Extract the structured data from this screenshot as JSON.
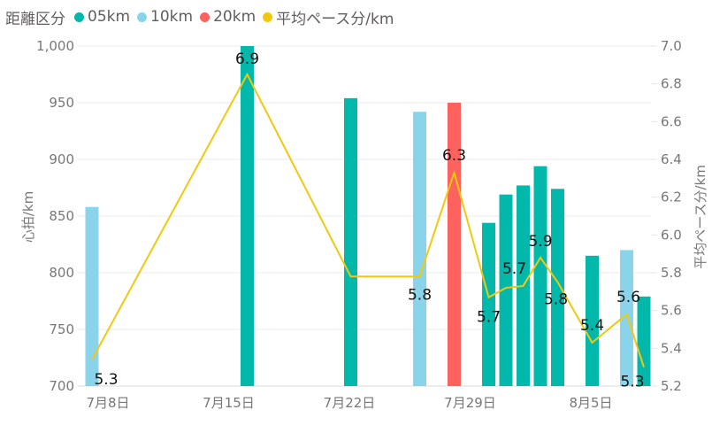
{
  "legend": {
    "title": "距離区分",
    "items": [
      {
        "label": "05km",
        "color": "#01B8AA"
      },
      {
        "label": "10km",
        "color": "#8AD4EB"
      },
      {
        "label": "20km",
        "color": "#FD625E"
      },
      {
        "label": "平均ペース分/km",
        "color": "#F2C80F"
      }
    ]
  },
  "chart_data": {
    "type": "bar+line",
    "title": "",
    "xlabel": "",
    "ylabel": "心拍/km",
    "y2label": "平均ペース分/km",
    "ylim": [
      700,
      1000
    ],
    "y2lim": [
      5.2,
      7.0
    ],
    "grid": true,
    "legend_position": "top-left",
    "y_ticks": [
      "1,000",
      "950",
      "900",
      "850",
      "800",
      "750",
      "700"
    ],
    "y2_ticks": [
      "7.0",
      "6.8",
      "6.6",
      "6.4",
      "6.2",
      "6.0",
      "5.8",
      "5.6",
      "5.4",
      "5.2"
    ],
    "x_ticks": [
      "7月8日",
      "7月15日",
      "7月22日",
      "7月29日",
      "8月5日"
    ],
    "points": [
      {
        "date": "7月8日",
        "category": "10km",
        "heartbeats_per_km": 858,
        "pace": 5.34,
        "pace_label": "5.3"
      },
      {
        "date": "7月17日",
        "category": "05km",
        "heartbeats_per_km": 1000,
        "pace": 6.85,
        "pace_label": "6.9"
      },
      {
        "date": "7月23日",
        "category": "05km",
        "heartbeats_per_km": 954,
        "pace": 5.78,
        "pace_label": ""
      },
      {
        "date": "7月27日",
        "category": "10km",
        "heartbeats_per_km": 942,
        "pace": 5.78,
        "pace_label": "5.8"
      },
      {
        "date": "7月29日",
        "category": "20km",
        "heartbeats_per_km": 950,
        "pace": 6.33,
        "pace_label": "6.3"
      },
      {
        "date": "7月31日",
        "category": "05km",
        "heartbeats_per_km": 844,
        "pace": 5.67,
        "pace_label": "5.7"
      },
      {
        "date": "8月1日",
        "category": "05km",
        "heartbeats_per_km": 869,
        "pace": 5.72,
        "pace_label": ""
      },
      {
        "date": "8月2日",
        "category": "05km",
        "heartbeats_per_km": 877,
        "pace": 5.73,
        "pace_label": "5.7"
      },
      {
        "date": "8月3日",
        "category": "05km",
        "heartbeats_per_km": 894,
        "pace": 5.88,
        "pace_label": "5.9"
      },
      {
        "date": "8月4日",
        "category": "05km",
        "heartbeats_per_km": 874,
        "pace": 5.75,
        "pace_label": "5.8"
      },
      {
        "date": "8月6日",
        "category": "05km",
        "heartbeats_per_km": 815,
        "pace": 5.43,
        "pace_label": "5.4"
      },
      {
        "date": "8月8日",
        "category": "10km",
        "heartbeats_per_km": 820,
        "pace": 5.58,
        "pace_label": "5.6"
      },
      {
        "date": "8月9日",
        "category": "05km",
        "heartbeats_per_km": 779,
        "pace": 5.3,
        "pace_label": "5.3"
      }
    ]
  }
}
